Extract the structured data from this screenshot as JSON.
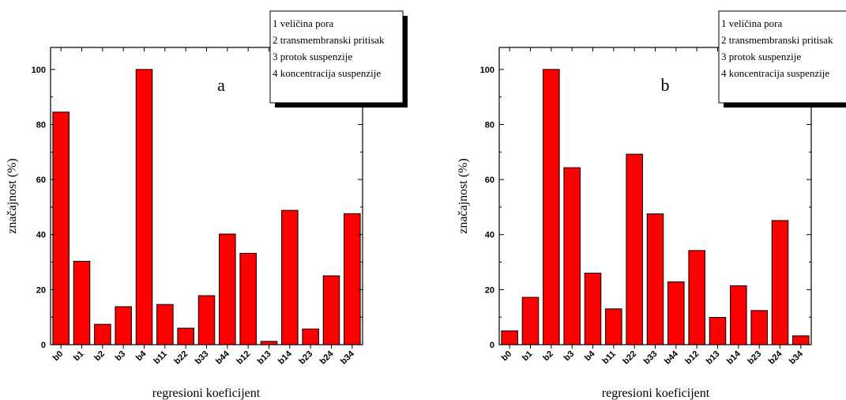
{
  "chart_data": [
    {
      "type": "bar",
      "panel_label": "a",
      "categories": [
        "b0",
        "b1",
        "b2",
        "b3",
        "b4",
        "b11",
        "b22",
        "b33",
        "b44",
        "b12",
        "b13",
        "b14",
        "b23",
        "b24",
        "b34"
      ],
      "values": [
        84.5,
        30.3,
        7.4,
        13.8,
        100,
        14.6,
        6.0,
        17.8,
        40.2,
        33.2,
        1.2,
        48.8,
        5.7,
        25.0,
        47.6
      ],
      "xlabel": "regresioni koeficijent",
      "ylabel": "značajnost (%)",
      "ylim": [
        0,
        108
      ],
      "yticks": [
        0,
        20,
        40,
        60,
        80,
        100
      ],
      "bar_color": "#ff0000",
      "legend": [
        "1 veličina pora",
        "2 transmembranski pritisak",
        "3 protok suspenzije",
        "4 koncentracija suspenzije"
      ]
    },
    {
      "type": "bar",
      "panel_label": "b",
      "categories": [
        "b0",
        "b1",
        "b2",
        "b3",
        "b4",
        "b11",
        "b22",
        "b33",
        "b44",
        "b12",
        "b13",
        "b14",
        "b23",
        "b24",
        "b34"
      ],
      "values": [
        5.0,
        17.2,
        100,
        64.3,
        26.0,
        13.0,
        69.2,
        47.5,
        22.8,
        34.2,
        9.9,
        21.4,
        12.4,
        45.1,
        3.2
      ],
      "xlabel": "regresioni koeficijent",
      "ylabel": "značajnost (%)",
      "ylim": [
        0,
        108
      ],
      "yticks": [
        0,
        20,
        40,
        60,
        80,
        100
      ],
      "bar_color": "#ff0000",
      "legend": [
        "1 veličina pora",
        "2 transmembranski pritisak",
        "3 protok suspenzije",
        "4 koncentracija suspenzije"
      ]
    }
  ]
}
